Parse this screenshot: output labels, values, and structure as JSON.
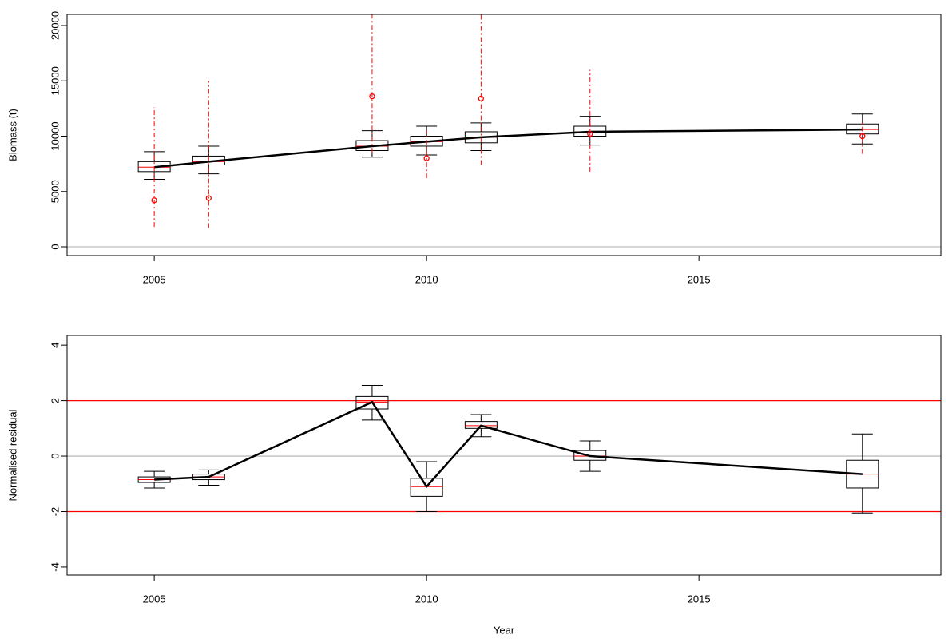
{
  "chart_data": [
    {
      "type": "box",
      "ylabel": "Biomass (t)",
      "x": [
        2005,
        2006,
        2009,
        2010,
        2011,
        2013,
        2018
      ],
      "whisker_low": [
        6100,
        6600,
        8100,
        8300,
        8700,
        9200,
        9300
      ],
      "q1": [
        6800,
        7400,
        8700,
        9100,
        9400,
        10000,
        10200
      ],
      "median": [
        7200,
        7700,
        9100,
        9500,
        9900,
        10400,
        10600
      ],
      "q3": [
        7700,
        8200,
        9600,
        10000,
        10400,
        10900,
        11100
      ],
      "whisker_high": [
        8600,
        9100,
        10500,
        10900,
        11200,
        11800,
        12000
      ],
      "observed": {
        "values": [
          4200,
          4400,
          13600,
          8000,
          13400,
          10200,
          10000
        ],
        "lower": [
          1800,
          1700,
          8500,
          6200,
          7400,
          6800,
          8400
        ],
        "upper": [
          12600,
          15000,
          25000,
          10500,
          24000,
          16000,
          11500
        ],
        "color": "#ff0000"
      },
      "box_color": "#000000",
      "median_color": "#ff0000",
      "reference_lines": [
        {
          "value": 0,
          "color": "#bebebe"
        }
      ],
      "xlim": [
        2003.4,
        2019.44
      ],
      "xticks": [
        2005,
        2010,
        2015
      ],
      "ylim": [
        -794,
        21010
      ],
      "yticks": [
        0,
        5000,
        10000,
        15000,
        20000
      ]
    },
    {
      "type": "box",
      "ylabel": "Normalised residual",
      "xlabel": "Year",
      "x": [
        2005,
        2006,
        2009,
        2010,
        2011,
        2013,
        2018
      ],
      "whisker_low": [
        -1.15,
        -1.05,
        1.3,
        -2.0,
        0.7,
        -0.55,
        -2.05
      ],
      "q1": [
        -0.95,
        -0.85,
        1.7,
        -1.45,
        1.0,
        -0.15,
        -1.15
      ],
      "median": [
        -0.85,
        -0.75,
        1.95,
        -1.1,
        1.1,
        0.0,
        -0.65
      ],
      "q3": [
        -0.75,
        -0.65,
        2.15,
        -0.8,
        1.25,
        0.2,
        -0.15
      ],
      "whisker_high": [
        -0.55,
        -0.5,
        2.55,
        -0.2,
        1.5,
        0.55,
        0.8
      ],
      "box_color": "#000000",
      "median_color": "#ff0000",
      "reference_lines": [
        {
          "value": 0,
          "color": "#bebebe"
        },
        {
          "value": 2,
          "color": "#ff0000"
        },
        {
          "value": -2,
          "color": "#ff0000"
        }
      ],
      "xlim": [
        2003.4,
        2019.44
      ],
      "xticks": [
        2005,
        2010,
        2015
      ],
      "ylim": [
        -4.29,
        4.35
      ],
      "yticks": [
        -4,
        -2,
        0,
        2,
        4
      ]
    }
  ]
}
